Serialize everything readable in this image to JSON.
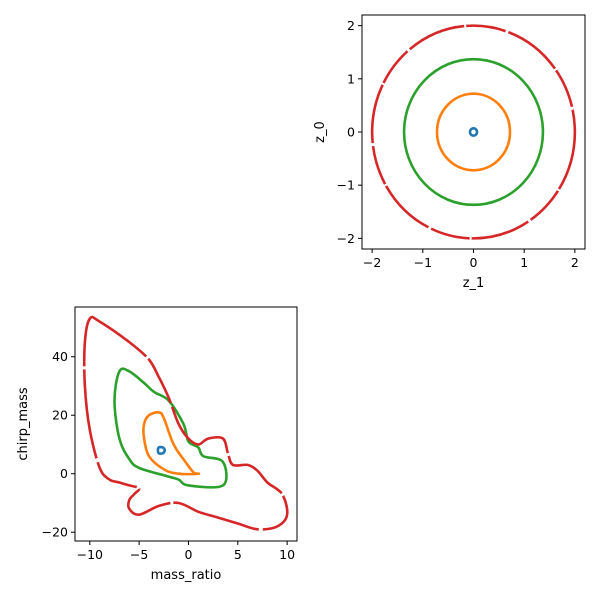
{
  "chart_data": [
    {
      "type": "scatter",
      "panel": "top-right",
      "xlabel": "z_1",
      "ylabel": "z_0",
      "xlim": [
        -2.2,
        2.2
      ],
      "ylim": [
        -2.2,
        2.2
      ],
      "xticks": [
        -2,
        -1,
        0,
        1,
        2
      ],
      "yticks": [
        -2,
        -1,
        0,
        1,
        2
      ],
      "grid": false,
      "series": [
        {
          "color": "#1f77b4",
          "shape": "circle",
          "cx": 0,
          "cy": 0,
          "r": 0.07
        },
        {
          "color": "#ff7f0e",
          "shape": "circle",
          "cx": 0,
          "cy": 0,
          "r": 0.72
        },
        {
          "color": "#2ca02c",
          "shape": "circle",
          "cx": 0,
          "cy": 0,
          "r": 1.37
        },
        {
          "color": "#d62728",
          "shape": "circle",
          "cx": 0,
          "cy": 0,
          "r": 2.0
        }
      ]
    },
    {
      "type": "scatter",
      "panel": "bottom-left",
      "xlabel": "mass_ratio",
      "ylabel": "chirp_mass",
      "xlim": [
        -11.5,
        11
      ],
      "ylim": [
        -23,
        57
      ],
      "xticks": [
        -10,
        -5,
        0,
        5,
        10
      ],
      "yticks": [
        -20,
        0,
        20,
        40
      ],
      "grid": false,
      "series": [
        {
          "color": "#1f77b4",
          "points": [
            [
              -3,
              9
            ],
            [
              -2.6,
              9
            ],
            [
              -2.4,
              8
            ],
            [
              -2.6,
              7
            ],
            [
              -3,
              7
            ],
            [
              -3.1,
              8
            ],
            [
              -3,
              9
            ]
          ]
        },
        {
          "color": "#ff7f0e",
          "points": [
            [
              -4,
              20
            ],
            [
              -3,
              21
            ],
            [
              -2.5,
              19
            ],
            [
              -1.5,
              10
            ],
            [
              -0.3,
              4
            ],
            [
              0.5,
              0.5
            ],
            [
              1,
              0
            ],
            [
              -1,
              0
            ],
            [
              -2.5,
              1.5
            ],
            [
              -4,
              6
            ],
            [
              -4.5,
              12
            ],
            [
              -4.5,
              17
            ],
            [
              -4,
              20
            ]
          ]
        },
        {
          "color": "#2ca02c",
          "points": [
            [
              -7,
              35
            ],
            [
              -6,
              35
            ],
            [
              -4.5,
              31
            ],
            [
              -3.5,
              28
            ],
            [
              -2,
              25
            ],
            [
              -0.5,
              17
            ],
            [
              0,
              11
            ],
            [
              1,
              9
            ],
            [
              1.5,
              6
            ],
            [
              3.5,
              4
            ],
            [
              3.5,
              -4
            ],
            [
              0,
              -4
            ],
            [
              -1,
              -2
            ],
            [
              -2,
              -1
            ],
            [
              -5,
              2
            ],
            [
              -6,
              5
            ],
            [
              -7,
              12
            ],
            [
              -7.5,
              25
            ],
            [
              -7,
              35
            ]
          ]
        },
        {
          "color": "#d62728",
          "points": [
            [
              -10,
              53
            ],
            [
              -9,
              52
            ],
            [
              -6,
              45
            ],
            [
              -4,
              39
            ],
            [
              -3,
              33
            ],
            [
              -2,
              26
            ],
            [
              -1,
              17
            ],
            [
              0,
              12
            ],
            [
              1,
              10
            ],
            [
              2,
              12
            ],
            [
              3.5,
              12
            ],
            [
              4,
              7
            ],
            [
              4.5,
              3
            ],
            [
              6,
              3
            ],
            [
              7,
              1
            ],
            [
              8,
              -3
            ],
            [
              9.5,
              -7
            ],
            [
              10,
              -14
            ],
            [
              9,
              -18
            ],
            [
              7,
              -19
            ],
            [
              5,
              -17
            ],
            [
              3,
              -15
            ],
            [
              1,
              -13
            ],
            [
              -1,
              -10
            ],
            [
              -3,
              -11
            ],
            [
              -5,
              -14
            ],
            [
              -6,
              -12
            ],
            [
              -6,
              -9
            ],
            [
              -5.5,
              -7
            ],
            [
              -5,
              -5
            ],
            [
              -6,
              -4
            ],
            [
              -7,
              -3
            ],
            [
              -8,
              -2
            ],
            [
              -9,
              2
            ],
            [
              -10,
              15
            ],
            [
              -10.5,
              30
            ],
            [
              -10.5,
              45
            ],
            [
              -10,
              53
            ]
          ]
        }
      ]
    }
  ]
}
